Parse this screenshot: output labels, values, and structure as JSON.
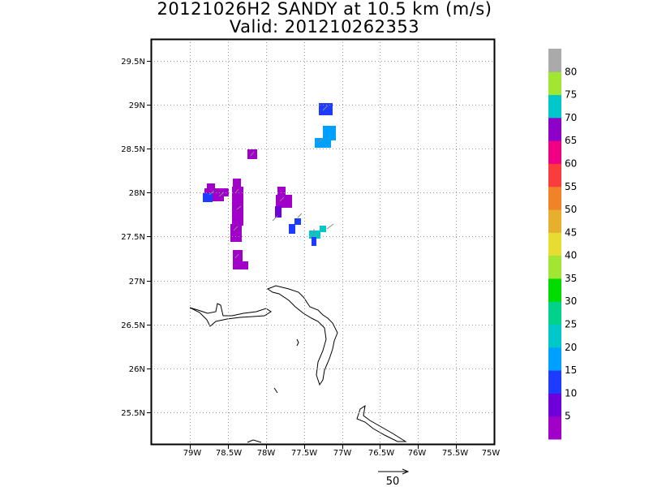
{
  "title": {
    "line1": "20121026H2 SANDY at 10.5 km (m/s)",
    "line2": "Valid: 201210262353"
  },
  "axes": {
    "lon_ticks": [
      "79W",
      "78.5W",
      "78W",
      "77.5W",
      "77W",
      "76.5W",
      "76W",
      "75.5W",
      "75W"
    ],
    "lat_ticks": [
      "29.5N",
      "29N",
      "28.5N",
      "28N",
      "27.5N",
      "27N",
      "26.5N",
      "26N",
      "25.5N"
    ],
    "lon_range": [
      -79.5,
      -75.0
    ],
    "lat_range": [
      25.15,
      29.8
    ],
    "grid": "dotted"
  },
  "colorbar": {
    "labels": [
      "5",
      "10",
      "15",
      "20",
      "25",
      "30",
      "35",
      "40",
      "45",
      "50",
      "55",
      "60",
      "65",
      "70",
      "75",
      "80"
    ],
    "colors": [
      "#a000c8",
      "#6e00dc",
      "#1e3cff",
      "#00a0ff",
      "#00c8c8",
      "#00d28c",
      "#00dc00",
      "#a0e632",
      "#e6dc32",
      "#e6af2d",
      "#f08228",
      "#fa3c3c",
      "#f00082",
      "#8c00c8",
      "#00c8c8",
      "#a0e632",
      "#aaaaaa"
    ]
  },
  "scale_vector": {
    "label": "50"
  },
  "colors": {
    "coastline": "#000000",
    "grid": "#999999",
    "wind_arrow": "#888888"
  }
}
